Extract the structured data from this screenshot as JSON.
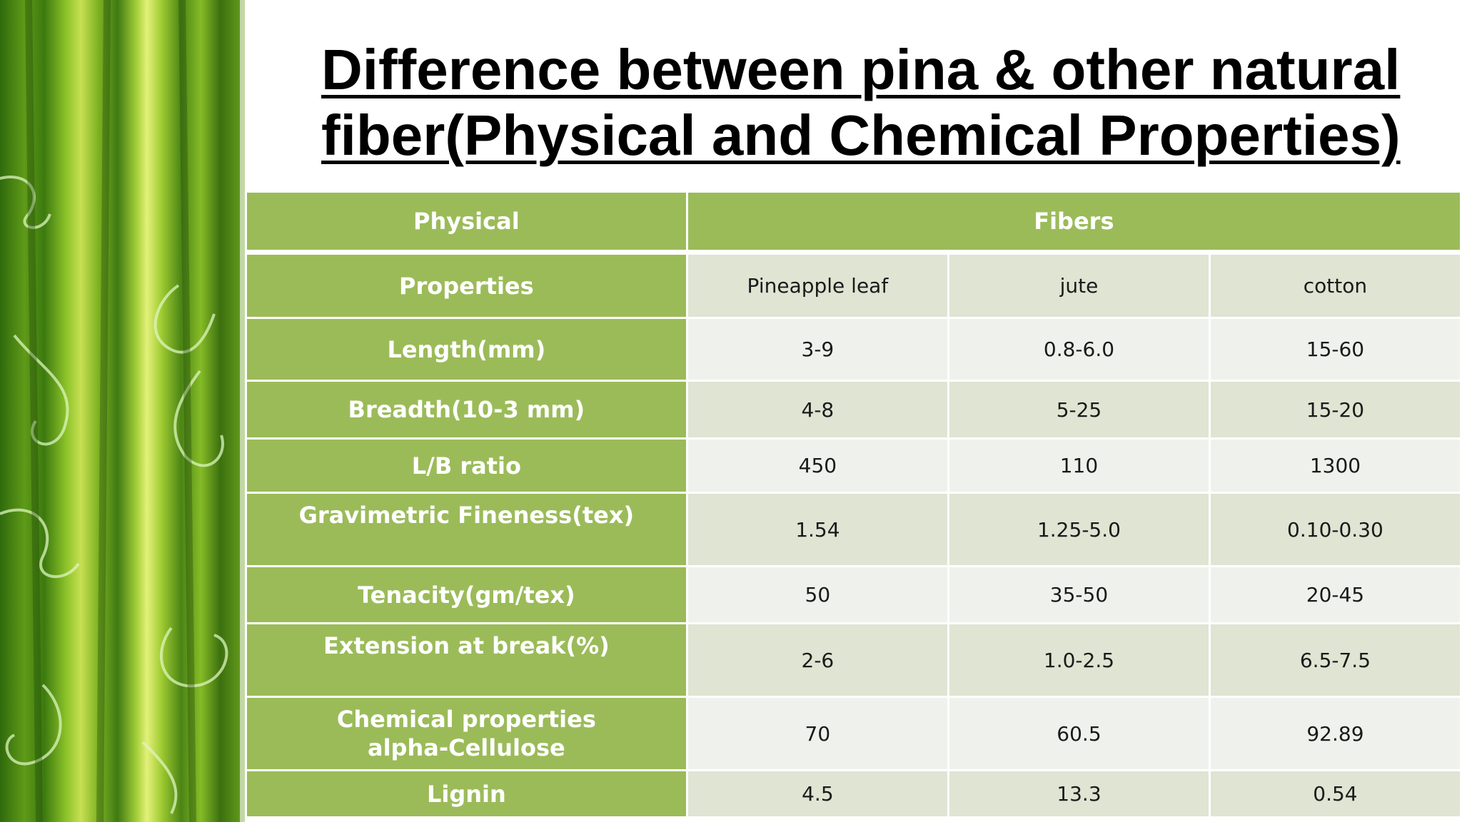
{
  "slide": {
    "title": "Difference between pina & other natural fiber(Physical and Chemical Properties)"
  },
  "table": {
    "header": {
      "col_physical": "Physical",
      "col_fibers": "Fibers"
    },
    "rows": [
      {
        "label": "Properties",
        "values": [
          "Pineapple  leaf",
          "jute",
          "cotton"
        ]
      },
      {
        "label": "Length(mm)",
        "values": [
          "3-9",
          "0.8-6.0",
          "15-60"
        ]
      },
      {
        "label": "Breadth(10-3  mm)",
        "values": [
          "4-8",
          "5-25",
          "15-20"
        ]
      },
      {
        "label": "L/B  ratio",
        "values": [
          "450",
          "110",
          "1300"
        ]
      },
      {
        "label": "Gravimetric  Fineness(tex)",
        "values": [
          "1.54",
          "1.25-5.0",
          "0.10-0.30"
        ]
      },
      {
        "label": "Tenacity(gm/tex)",
        "values": [
          "50",
          "35-50",
          "20-45"
        ]
      },
      {
        "label": "Extension  at  break(%)",
        "values": [
          "2-6",
          "1.0-2.5",
          "6.5-7.5"
        ]
      },
      {
        "label_line1": "Chemical  properties",
        "label_line2": "alpha-Cellulose",
        "values": [
          "70",
          "60.5",
          "92.89"
        ]
      },
      {
        "label": "Lignin",
        "values": [
          "4.5",
          "13.3",
          "0.54"
        ]
      }
    ]
  },
  "colors": {
    "header_green": "#9bbb59",
    "row_band_dark": "#dfe4d3",
    "row_band_light": "#eff2ec"
  }
}
